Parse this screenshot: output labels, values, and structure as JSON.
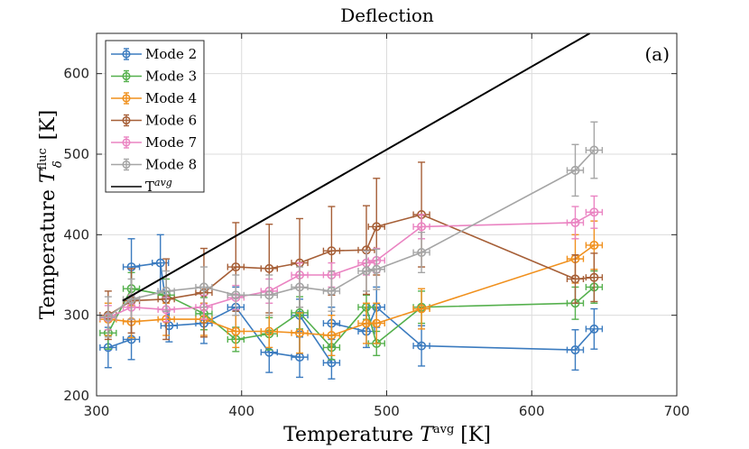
{
  "chart_data": {
    "type": "line",
    "title": "Deflection",
    "panel_label": "(a)",
    "xlabel": {
      "text": "Temperature ",
      "symbol": "T",
      "sup": "avg",
      "unit": " [K]"
    },
    "ylabel": {
      "text": "Temperature ",
      "symbol": "T",
      "sup": "fluc",
      "sub": "δ",
      "unit": " [K]"
    },
    "xlim": [
      300,
      700
    ],
    "ylim": [
      200,
      650
    ],
    "xticks": [
      "300",
      "400",
      "500",
      "600",
      "700"
    ],
    "yticks": [
      "200",
      "300",
      "400",
      "500",
      "600"
    ],
    "xtick_values": [
      300,
      400,
      500,
      600,
      700
    ],
    "ytick_values": [
      200,
      300,
      400,
      500,
      600
    ],
    "grid": true,
    "legend_position": "top-left",
    "series": [
      {
        "name": "Mode 2",
        "color": "#3b7bbf",
        "points": [
          [
            308,
            260,
            25
          ],
          [
            324,
            270,
            25
          ],
          [
            324,
            360,
            35
          ],
          [
            344,
            365,
            35
          ],
          [
            350,
            287,
            20
          ],
          [
            374,
            290,
            25
          ],
          [
            396,
            310,
            25
          ],
          [
            419,
            254,
            25
          ],
          [
            440,
            248,
            25
          ],
          [
            440,
            300,
            20
          ],
          [
            462,
            241,
            20
          ],
          [
            462,
            290,
            20
          ],
          [
            486,
            280,
            20
          ],
          [
            493,
            310,
            25
          ],
          [
            524,
            262,
            25
          ],
          [
            630,
            257,
            25
          ],
          [
            643,
            283,
            25
          ]
        ]
      },
      {
        "name": "Mode 3",
        "color": "#55b04d",
        "points": [
          [
            308,
            278,
            20
          ],
          [
            324,
            333,
            20
          ],
          [
            348,
            325,
            20
          ],
          [
            374,
            302,
            20
          ],
          [
            396,
            270,
            15
          ],
          [
            419,
            277,
            20
          ],
          [
            440,
            303,
            20
          ],
          [
            462,
            260,
            15
          ],
          [
            486,
            310,
            15
          ],
          [
            493,
            265,
            15
          ],
          [
            524,
            310,
            20
          ],
          [
            630,
            315,
            20
          ],
          [
            643,
            335,
            20
          ]
        ]
      },
      {
        "name": "Mode 4",
        "color": "#f0901d",
        "points": [
          [
            308,
            295,
            20
          ],
          [
            324,
            292,
            20
          ],
          [
            348,
            295,
            20
          ],
          [
            374,
            295,
            20
          ],
          [
            396,
            280,
            20
          ],
          [
            419,
            280,
            20
          ],
          [
            440,
            278,
            25
          ],
          [
            462,
            275,
            25
          ],
          [
            486,
            290,
            25
          ],
          [
            493,
            290,
            25
          ],
          [
            524,
            308,
            25
          ],
          [
            630,
            370,
            30
          ],
          [
            643,
            387,
            30
          ]
        ]
      },
      {
        "name": "Mode 6",
        "color": "#a65f37",
        "points": [
          [
            308,
            300,
            30
          ],
          [
            324,
            318,
            40
          ],
          [
            348,
            320,
            50
          ],
          [
            374,
            328,
            55
          ],
          [
            396,
            360,
            55
          ],
          [
            419,
            358,
            55
          ],
          [
            440,
            365,
            55
          ],
          [
            462,
            380,
            55
          ],
          [
            486,
            381,
            55
          ],
          [
            493,
            410,
            60
          ],
          [
            524,
            425,
            65
          ],
          [
            630,
            345,
            30
          ],
          [
            643,
            347,
            30
          ]
        ]
      },
      {
        "name": "Mode 7",
        "color": "#ea84c2",
        "points": [
          [
            308,
            297,
            15
          ],
          [
            324,
            310,
            15
          ],
          [
            348,
            307,
            15
          ],
          [
            374,
            310,
            15
          ],
          [
            396,
            322,
            15
          ],
          [
            419,
            330,
            15
          ],
          [
            440,
            350,
            15
          ],
          [
            462,
            350,
            15
          ],
          [
            486,
            365,
            15
          ],
          [
            493,
            368,
            15
          ],
          [
            524,
            410,
            15
          ],
          [
            630,
            415,
            20
          ],
          [
            643,
            428,
            20
          ]
        ]
      },
      {
        "name": "Mode 8",
        "color": "#a5a5a5",
        "points": [
          [
            308,
            298,
            25
          ],
          [
            324,
            320,
            25
          ],
          [
            348,
            330,
            25
          ],
          [
            374,
            335,
            25
          ],
          [
            396,
            325,
            25
          ],
          [
            419,
            325,
            25
          ],
          [
            440,
            335,
            25
          ],
          [
            462,
            330,
            25
          ],
          [
            486,
            355,
            25
          ],
          [
            493,
            357,
            25
          ],
          [
            524,
            378,
            25
          ],
          [
            630,
            480,
            32
          ],
          [
            643,
            505,
            35
          ]
        ]
      },
      {
        "name": "T",
        "sup": "avg",
        "color": "#000000",
        "kind": "reference-line",
        "points": [
          [
            318,
            318
          ],
          [
            640,
            650
          ]
        ]
      }
    ]
  }
}
